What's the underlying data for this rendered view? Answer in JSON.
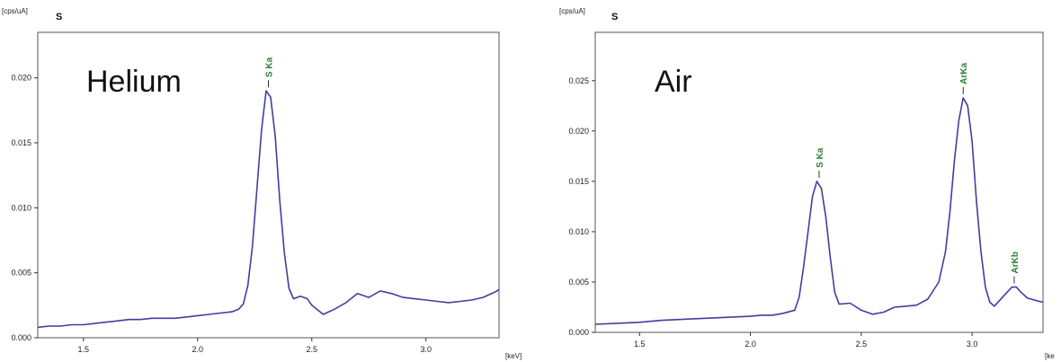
{
  "chart_data": [
    {
      "type": "line",
      "title": "S",
      "annotation": "Helium",
      "ylabel": "[cps/uA]",
      "xlabel": "[keV]",
      "xlim": [
        1.3,
        3.32
      ],
      "ylim": [
        0,
        0.0235
      ],
      "xticks": [
        {
          "value": 1.5,
          "label": "1.5"
        },
        {
          "value": 2.0,
          "label": "2.0"
        },
        {
          "value": 2.5,
          "label": "2.5"
        },
        {
          "value": 3.0,
          "label": "3.0"
        }
      ],
      "yticks": [
        {
          "value": 0.0,
          "label": "0.000"
        },
        {
          "value": 0.005,
          "label": "0.005"
        },
        {
          "value": 0.01,
          "label": "0.010"
        },
        {
          "value": 0.015,
          "label": "0.015"
        },
        {
          "value": 0.02,
          "label": "0.020"
        }
      ],
      "peaks": [
        {
          "label": "S Ka",
          "x": 2.31,
          "y": 0.019
        }
      ],
      "series": [
        {
          "color": "#3f3f9e",
          "x": [
            1.3,
            1.35,
            1.4,
            1.45,
            1.5,
            1.55,
            1.6,
            1.65,
            1.7,
            1.75,
            1.8,
            1.85,
            1.9,
            1.95,
            2.0,
            2.05,
            2.1,
            2.15,
            2.18,
            2.2,
            2.22,
            2.24,
            2.26,
            2.28,
            2.3,
            2.32,
            2.34,
            2.36,
            2.38,
            2.4,
            2.42,
            2.45,
            2.48,
            2.5,
            2.55,
            2.6,
            2.65,
            2.7,
            2.75,
            2.8,
            2.85,
            2.9,
            2.95,
            3.0,
            3.05,
            3.1,
            3.15,
            3.2,
            3.25,
            3.3,
            3.32
          ],
          "y": [
            0.0008,
            0.0009,
            0.0009,
            0.001,
            0.001,
            0.0011,
            0.0012,
            0.0013,
            0.0014,
            0.0014,
            0.0015,
            0.0015,
            0.0015,
            0.0016,
            0.0017,
            0.0018,
            0.0019,
            0.002,
            0.0022,
            0.0026,
            0.004,
            0.007,
            0.0115,
            0.016,
            0.019,
            0.0185,
            0.0155,
            0.0105,
            0.0065,
            0.0038,
            0.003,
            0.0032,
            0.003,
            0.0025,
            0.0018,
            0.0022,
            0.0027,
            0.0034,
            0.0031,
            0.0036,
            0.0034,
            0.0031,
            0.003,
            0.0029,
            0.0028,
            0.0027,
            0.0028,
            0.0029,
            0.0031,
            0.0035,
            0.0037
          ]
        }
      ]
    },
    {
      "type": "line",
      "title": "S",
      "annotation": "Air",
      "ylabel": "[cps/uA]",
      "xlabel": "[ke",
      "xlim": [
        1.3,
        3.32
      ],
      "ylim": [
        0,
        0.0298
      ],
      "xticks": [
        {
          "value": 1.5,
          "label": "1.5"
        },
        {
          "value": 2.0,
          "label": "2.0"
        },
        {
          "value": 2.5,
          "label": "2.5"
        },
        {
          "value": 3.0,
          "label": "3.0"
        }
      ],
      "yticks": [
        {
          "value": 0.0,
          "label": "0.000"
        },
        {
          "value": 0.005,
          "label": "0.005"
        },
        {
          "value": 0.01,
          "label": "0.010"
        },
        {
          "value": 0.015,
          "label": "0.015"
        },
        {
          "value": 0.02,
          "label": "0.020"
        },
        {
          "value": 0.025,
          "label": "0.025"
        }
      ],
      "peaks": [
        {
          "label": "S Ka",
          "x": 2.31,
          "y": 0.015
        },
        {
          "label": "ArKa",
          "x": 2.96,
          "y": 0.0233
        },
        {
          "label": "ArKb",
          "x": 3.19,
          "y": 0.0045
        }
      ],
      "series": [
        {
          "color": "#3f3f9e",
          "x": [
            1.3,
            1.4,
            1.5,
            1.6,
            1.7,
            1.8,
            1.9,
            2.0,
            2.05,
            2.1,
            2.15,
            2.2,
            2.22,
            2.24,
            2.26,
            2.28,
            2.3,
            2.32,
            2.34,
            2.36,
            2.38,
            2.4,
            2.45,
            2.5,
            2.55,
            2.6,
            2.65,
            2.7,
            2.75,
            2.8,
            2.85,
            2.88,
            2.9,
            2.92,
            2.94,
            2.96,
            2.98,
            3.0,
            3.02,
            3.04,
            3.06,
            3.08,
            3.1,
            3.15,
            3.18,
            3.2,
            3.22,
            3.25,
            3.3,
            3.32
          ],
          "y": [
            0.0008,
            0.0009,
            0.001,
            0.0012,
            0.0013,
            0.0014,
            0.0015,
            0.0016,
            0.0017,
            0.0017,
            0.0019,
            0.0022,
            0.0035,
            0.0065,
            0.01,
            0.0135,
            0.015,
            0.0143,
            0.0115,
            0.0075,
            0.004,
            0.0028,
            0.0029,
            0.0022,
            0.0018,
            0.002,
            0.0025,
            0.0026,
            0.0027,
            0.0033,
            0.005,
            0.008,
            0.012,
            0.017,
            0.021,
            0.0233,
            0.0225,
            0.019,
            0.013,
            0.008,
            0.0045,
            0.003,
            0.0026,
            0.0038,
            0.0045,
            0.0045,
            0.004,
            0.0034,
            0.0031,
            0.003
          ]
        }
      ]
    }
  ]
}
